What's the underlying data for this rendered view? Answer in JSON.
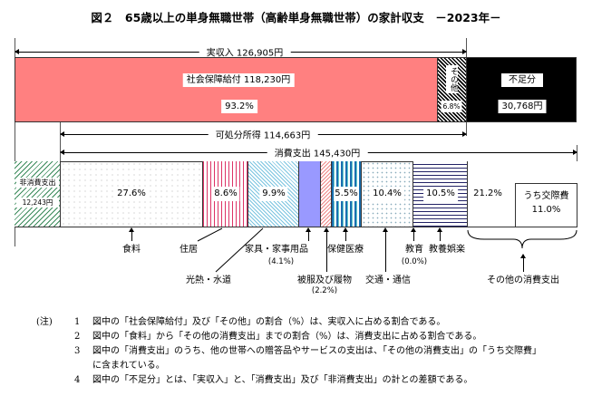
{
  "title": "図２　65歳以上の単身無職世帯（高齢単身無職世帯）の家計収支　－2023年－",
  "income": {
    "label": "実収入 126,905円",
    "social_security": "社会保障給付 118,230円",
    "social_security_pct": "93.2%",
    "other": "その他",
    "other_pct": "6.8%",
    "shortfall": "不足分",
    "shortfall_amount": "30,768円"
  },
  "disposable": "可処分所得 114,663円",
  "consumption": "消費支出 145,430円",
  "non_consumption": {
    "label": "非消費支出",
    "amount": "12,243円"
  },
  "segments": {
    "food": "27.6%",
    "housing": "8.6%",
    "utilities": "9.9%",
    "medical": "5.5%",
    "transport": "10.4%",
    "culture": "10.5%",
    "other": "21.2%",
    "social": "うち交際費",
    "social_pct": "11.0%"
  },
  "labels": {
    "food": "食料",
    "housing": "住居",
    "furniture": "家具・家事用品",
    "furniture_pct": "(4.1%)",
    "utilities": "光熱・水道",
    "clothing": "被服及び履物",
    "clothing_pct": "(2.2%)",
    "medical": "保健医療",
    "transport": "交通・通信",
    "education": "教育",
    "education_pct": "(0.0%)",
    "culture": "教養娯楽",
    "other": "その他の消費支出"
  },
  "notes": {
    "head": "(注)",
    "items": [
      {
        "n": "1",
        "t": "図中の「社会保障給付」及び「その他」の割合（%）は、実収入に占める割合である。"
      },
      {
        "n": "2",
        "t": "図中の「食料」から「その他の消費支出」までの割合（%）は、消費支出に占める割合である。"
      },
      {
        "n": "3",
        "t": "図中の「消費支出」のうち、他の世帯への贈答品やサービスの支出は、「その他の消費支出」の「うち交際費」"
      },
      {
        "n": "",
        "t": "に含まれている。"
      },
      {
        "n": "4",
        "t": "図中の「不足分」とは、「実収入」と、「消費支出」及び「非消費支出」の計との差額である。"
      }
    ]
  },
  "colors": {
    "social_security": "#ff8080",
    "furniture": "#9999ff",
    "shortfall": "#000000"
  }
}
